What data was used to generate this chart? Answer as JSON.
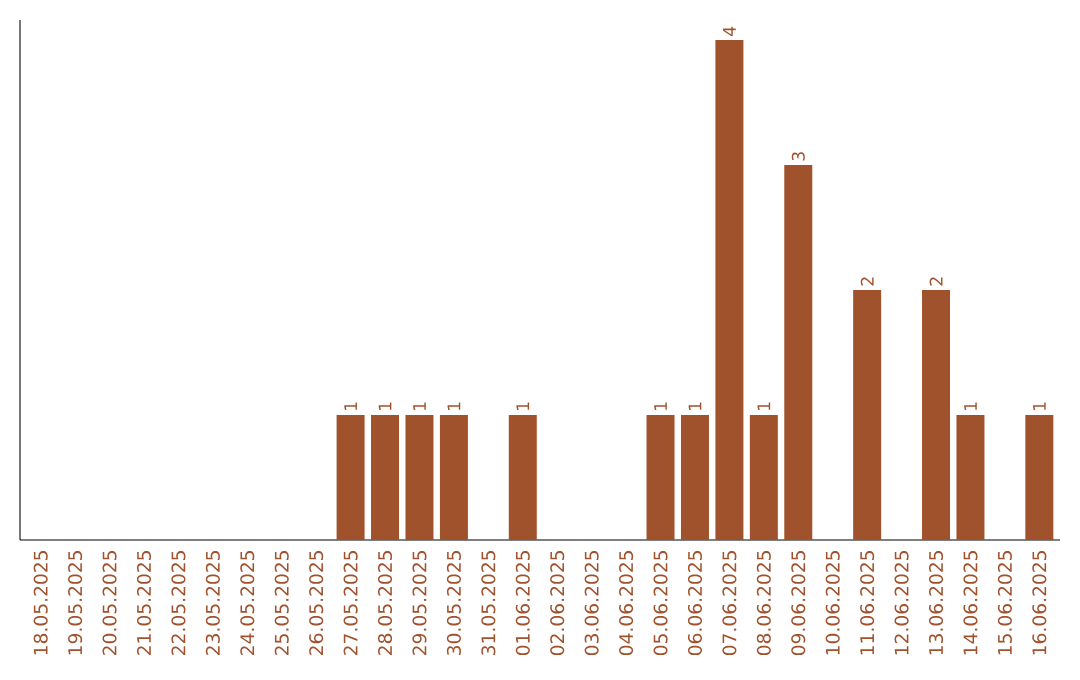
{
  "chart_data": {
    "type": "bar",
    "categories": [
      "18.05.2025",
      "19.05.2025",
      "20.05.2025",
      "21.05.2025",
      "22.05.2025",
      "23.05.2025",
      "24.05.2025",
      "25.05.2025",
      "26.05.2025",
      "27.05.2025",
      "28.05.2025",
      "29.05.2025",
      "30.05.2025",
      "31.05.2025",
      "01.06.2025",
      "02.06.2025",
      "03.06.2025",
      "04.06.2025",
      "05.06.2025",
      "06.06.2025",
      "07.06.2025",
      "08.06.2025",
      "09.06.2025",
      "10.06.2025",
      "11.06.2025",
      "12.06.2025",
      "13.06.2025",
      "14.06.2025",
      "15.06.2025",
      "16.06.2025"
    ],
    "values": [
      0,
      0,
      0,
      0,
      0,
      0,
      0,
      0,
      0,
      1,
      1,
      1,
      1,
      0,
      1,
      0,
      0,
      0,
      1,
      1,
      4,
      1,
      3,
      0,
      2,
      0,
      2,
      1,
      0,
      1
    ],
    "value_labels": [
      null,
      null,
      null,
      null,
      null,
      null,
      null,
      null,
      null,
      "1",
      "1",
      "1",
      "1",
      null,
      "1",
      null,
      null,
      null,
      "1",
      "1",
      "4",
      "1",
      "3",
      null,
      "2",
      null,
      "2",
      "1",
      null,
      "1"
    ],
    "color": "#a0522d"
  }
}
